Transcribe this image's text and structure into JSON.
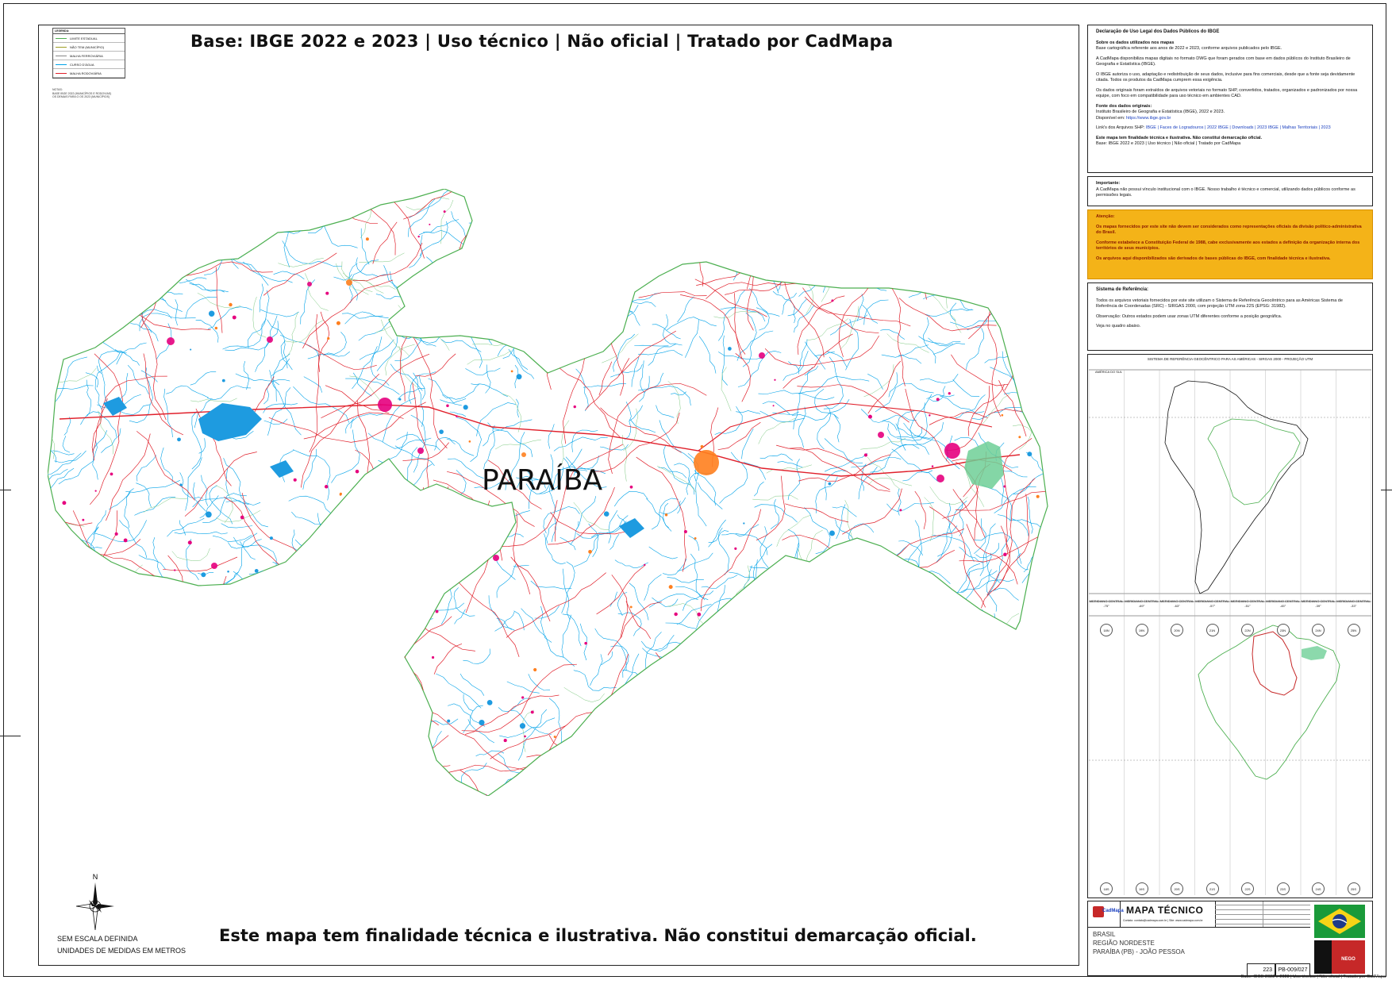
{
  "header": {
    "title": "Base: IBGE 2022 e 2023 | Uso técnico | Não oficial | Tratado por CadMapa"
  },
  "legend": {
    "heading": "LEGENDA:",
    "items": [
      {
        "label": "LIMITE ESTADUAL",
        "color": "#4caf50"
      },
      {
        "label": "NÃO TEM (MUNICÍPIO)",
        "color": "#9e9d24"
      },
      {
        "label": "MALHA FERROVIÁRIA",
        "color": "#888888"
      },
      {
        "label": "CURSO D'ÁGUA",
        "color": "#00a2e8"
      },
      {
        "label": "MALHA RODOVIÁRIA",
        "color": "#e0202b"
      }
    ],
    "note_lines": [
      "NOTAS:",
      "BASE IBGE 2022 (MUNICÍPIOS E RODOVIAS)",
      "OS DEMAIS PARA O OS 2023 (MUNICÍPIOS)"
    ]
  },
  "map": {
    "state_label": "PARAÍBA",
    "colors": {
      "border": "#4caf50",
      "rivers": "#00a2e8",
      "roads": "#e0202b",
      "urban": "#e6007e",
      "urban_alt": "#ff7f1e",
      "reservoir": "#1e9be0",
      "coast_green": "#6fcf97"
    },
    "north_label": "N",
    "scale_note": "SEM ESCALA DEFINIDA",
    "units_note": "UNIDADES DE MEDIDAS EM METROS",
    "footer_text": "Este mapa tem finalidade técnica e ilustrativa. Não constitui demarcação oficial."
  },
  "declaration": {
    "title": "Declaração de Uso Legal dos Dados Públicos do IBGE",
    "about_heading": "Sobre os dados utilizados nos mapas",
    "about_1": "Base cartográfica referente aos anos de 2022 e 2023, conforme arquivos publicados pelo IBGE.",
    "about_2": "A CadMapa disponibiliza mapas digitais no formato DWG que foram gerados com base em dados públicos do Instituto Brasileiro de Geografia e Estatística (IBGE).",
    "about_3": "O IBGE autoriza o uso, adaptação e redistribuição de seus dados, inclusive para fins comerciais, desde que a fonte seja devidamente citada. Todos os produtos da CadMapa cumprem essa exigência.",
    "about_4": "Os dados originais foram extraídos de arquivos vetoriais no formato SHP, convertidos, tratados, organizados e padronizados por nossa equipe, com foco em compatibilidade para uso técnico em ambientes CAD.",
    "source_heading": "Fonte dos dados originais:",
    "source_1": "Instituto Brasileiro de Geografia e Estatística (IBGE), 2022 e 2023.",
    "source_2_label": "Disponível em:",
    "source_2_link": "https://www.ibge.gov.br",
    "links_label": "Link's dos Arquivos SHP:",
    "links": "IBGE | Faces de Logradouros | 2022    IBGE | Downloads | 2023    IBGE | Malhas Territoriais | 2023",
    "purpose_heading": "Este mapa tem finalidade técnica e ilustrativa. Não constitui demarcação oficial.",
    "purpose_line": "Base: IBGE 2022 e 2023 | Uso técnico | Não oficial | Tratado por CadMapa"
  },
  "important": {
    "heading": "Importante:",
    "text": "A CadMapa não possui vínculo institucional com o IBGE. Nosso trabalho é técnico e comercial, utilizando dados públicos conforme as permissões legais."
  },
  "attention": {
    "heading": "Atenção:",
    "p1": "Os mapas fornecidos por este site não devem ser considerados como representações oficiais da divisão político-administrativa do Brasil.",
    "p2": "Conforme estabelece a Constituição Federal de 1988, cabe exclusivamente aos estados a definição da organização interna dos territórios de seus municípios.",
    "p3": "Os arquivos aqui disponibilizados são derivados de bases públicas do IBGE, com finalidade técnica e ilustrativa."
  },
  "reference_system": {
    "heading": "Sistema de Referência:",
    "p1": "Todos os arquivos vetoriais fornecidos por este site utilizam o Sistema de Referência Geocêntrico para as Américas Sistema de Referência de Coordenadas (SRC) - SIRGAS 2000, com projeção UTM zona 22S (EPSG: 31982).",
    "p2": "Observação: Outros estados podem usar zonas UTM diferentes conforme a posição geográfica.",
    "p3": "Veja no quadro abaixo."
  },
  "utm_chart": {
    "title": "SISTEMA DE REFERÊNCIA GEOCÊNTRICO PARA AS AMÉRICAS - SIRGAS 2000 - PROJEÇÃO UTM",
    "region_label": "AMÉRICA DO SUL",
    "meridians": [
      {
        "label": "MERIDIANO CENTRAL",
        "deg": "-75°"
      },
      {
        "label": "MERIDIANO CENTRAL",
        "deg": "-69°"
      },
      {
        "label": "MERIDIANO CENTRAL",
        "deg": "-63°"
      },
      {
        "label": "MERIDIANO CENTRAL",
        "deg": "-57°"
      },
      {
        "label": "MERIDIANO CENTRAL",
        "deg": "-51°"
      },
      {
        "label": "MERIDIANO CENTRAL",
        "deg": "-45°"
      },
      {
        "label": "MERIDIANO CENTRAL",
        "deg": "-39°"
      },
      {
        "label": "MERIDIANO CENTRAL",
        "deg": "-33°"
      }
    ],
    "zones_top": [
      "18N",
      "19N",
      "20N",
      "21N",
      "22N",
      "23N",
      "24N",
      "25N"
    ],
    "zones_bottom": [
      "18S",
      "19S",
      "20S",
      "21S",
      "22S",
      "23S",
      "24S",
      "25S"
    ]
  },
  "title_block": {
    "brand": "CadMapa",
    "product": "MAPA TÉCNICO",
    "contact": "Contato: contato@cadmapa.com.br | Site: www.cadmapa.com.br",
    "country": "BRASIL",
    "region": "REGIÃO NORDESTE",
    "state_city": "PARAÍBA (PB) - JOÃO PESSOA",
    "sheet_number": "223",
    "code": "PB-009/027",
    "flag_label": "NEGO"
  },
  "copyright": "Base: IBGE 2022 e 2023 | Uso técnico | Não oficial | Tratado por CadMapa"
}
